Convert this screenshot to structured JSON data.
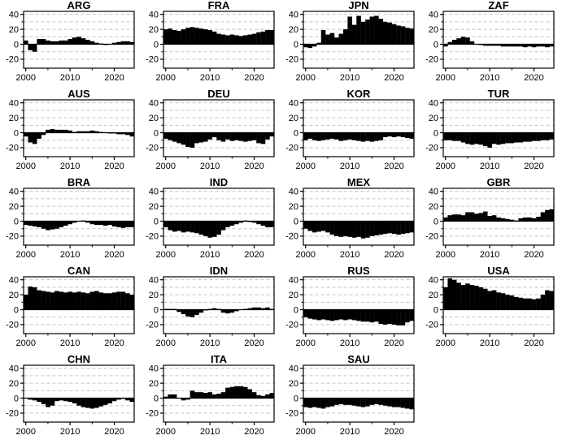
{
  "chart_data": {
    "type": "bar",
    "x_start": 2000,
    "x_end": 2024,
    "x_ticks": [
      2000,
      2010,
      2020
    ],
    "x_minor_ticks": [
      2005,
      2015
    ],
    "y_ticks": [
      -20,
      0,
      20,
      40
    ],
    "y_minor_ticks": [
      -10,
      10,
      30
    ],
    "y_gridlines": [
      -20,
      -10,
      10,
      20,
      30,
      40
    ],
    "ylim": [
      -32,
      44
    ],
    "bar_color": "#000000",
    "grid_color": "#c3c3c3",
    "axis_color": "#000000",
    "grid_style": "dashed",
    "legend": "none",
    "panels": [
      {
        "title": "ARG",
        "values": [
          5,
          -8,
          -10,
          7,
          7,
          5,
          4,
          4,
          5,
          5,
          7,
          9,
          10,
          8,
          6,
          4,
          2,
          1,
          -1,
          0,
          2,
          3,
          4,
          4,
          3
        ]
      },
      {
        "title": "FRA",
        "values": [
          20,
          21,
          19,
          18,
          20,
          22,
          23,
          22,
          21,
          20,
          19,
          17,
          14,
          13,
          12,
          13,
          12,
          11,
          12,
          13,
          14,
          16,
          17,
          19,
          19
        ]
      },
      {
        "title": "JPN",
        "values": [
          -4,
          -5,
          -3,
          2,
          19,
          13,
          15,
          9,
          14,
          20,
          37,
          26,
          38,
          30,
          33,
          37,
          38,
          34,
          30,
          29,
          27,
          25,
          24,
          22,
          21
        ]
      },
      {
        "title": "ZAF",
        "values": [
          -3,
          3,
          6,
          8,
          10,
          9,
          4,
          0,
          -1,
          -2,
          -2,
          -2,
          -2,
          -3,
          -3,
          -3,
          -3,
          -3,
          -4,
          -3,
          -4,
          -3,
          -3,
          -4,
          -3
        ]
      },
      {
        "title": "AUS",
        "values": [
          -5,
          -13,
          -15,
          -8,
          -3,
          4,
          5,
          4,
          4,
          4,
          3,
          1,
          2,
          2,
          2,
          3,
          2,
          1,
          0,
          -1,
          -1,
          -2,
          -2,
          -3,
          -5
        ]
      },
      {
        "title": "DEU",
        "values": [
          -8,
          -10,
          -12,
          -14,
          -16,
          -19,
          -20,
          -14,
          -13,
          -12,
          -9,
          -6,
          -10,
          -12,
          -9,
          -11,
          -10,
          -11,
          -12,
          -11,
          -10,
          -14,
          -15,
          -9,
          -5
        ]
      },
      {
        "title": "KOR",
        "values": [
          -10,
          -8,
          -10,
          -11,
          -10,
          -9,
          -8,
          -9,
          -11,
          -10,
          -9,
          -10,
          -11,
          -12,
          -11,
          -12,
          -11,
          -10,
          -6,
          -5,
          -6,
          -5,
          -6,
          -7,
          -8
        ]
      },
      {
        "title": "TUR",
        "values": [
          -10,
          -10,
          -11,
          -11,
          -13,
          -15,
          -16,
          -15,
          -16,
          -18,
          -20,
          -15,
          -16,
          -15,
          -14,
          -14,
          -13,
          -13,
          -12,
          -12,
          -11,
          -11,
          -10,
          -10,
          -9
        ]
      },
      {
        "title": "BRA",
        "values": [
          -5,
          -6,
          -7,
          -8,
          -10,
          -12,
          -11,
          -10,
          -8,
          -6,
          -4,
          -2,
          0,
          1,
          -2,
          -4,
          -5,
          -5,
          -6,
          -5,
          -7,
          -8,
          -9,
          -8,
          -8
        ]
      },
      {
        "title": "IND",
        "values": [
          -8,
          -12,
          -14,
          -13,
          -15,
          -14,
          -15,
          -16,
          -18,
          -20,
          -22,
          -21,
          -18,
          -12,
          -8,
          -6,
          -4,
          -2,
          1,
          -1,
          -2,
          -4,
          -6,
          -8,
          -8
        ]
      },
      {
        "title": "MEX",
        "values": [
          -10,
          -13,
          -15,
          -14,
          -13,
          -15,
          -18,
          -20,
          -21,
          -20,
          -21,
          -22,
          -21,
          -23,
          -22,
          -20,
          -19,
          -18,
          -17,
          -16,
          -17,
          -18,
          -17,
          -16,
          -15
        ]
      },
      {
        "title": "GBR",
        "values": [
          5,
          8,
          9,
          9,
          8,
          12,
          12,
          10,
          11,
          13,
          7,
          8,
          5,
          4,
          3,
          2,
          1,
          4,
          5,
          5,
          4,
          6,
          12,
          15,
          16
        ]
      },
      {
        "title": "CAN",
        "values": [
          20,
          31,
          30,
          26,
          25,
          24,
          23,
          25,
          24,
          23,
          24,
          23,
          24,
          23,
          22,
          24,
          25,
          23,
          22,
          22,
          23,
          24,
          24,
          22,
          20
        ]
      },
      {
        "title": "IDN",
        "values": [
          1,
          1,
          1,
          -3,
          -6,
          -9,
          -10,
          -7,
          -4,
          -1,
          1,
          2,
          1,
          -4,
          -5,
          -4,
          -2,
          0,
          1,
          2,
          3,
          3,
          2,
          3,
          1
        ]
      },
      {
        "title": "RUS",
        "values": [
          -10,
          -12,
          -13,
          -14,
          -13,
          -14,
          -15,
          -14,
          -13,
          -14,
          -13,
          -14,
          -15,
          -16,
          -16,
          -17,
          -16,
          -19,
          -20,
          -19,
          -20,
          -21,
          -21,
          -17,
          -15
        ]
      },
      {
        "title": "USA",
        "values": [
          30,
          42,
          40,
          36,
          33,
          35,
          33,
          32,
          30,
          28,
          25,
          26,
          23,
          22,
          20,
          19,
          17,
          16,
          15,
          15,
          14,
          15,
          20,
          26,
          25
        ]
      },
      {
        "title": "CHN",
        "values": [
          0,
          -2,
          -3,
          -5,
          -8,
          -12,
          -10,
          -4,
          -3,
          -4,
          -5,
          -7,
          -10,
          -12,
          -13,
          -14,
          -13,
          -11,
          -9,
          -7,
          -4,
          -2,
          -1,
          -3,
          -5
        ]
      },
      {
        "title": "ITA",
        "values": [
          2,
          5,
          5,
          0,
          -3,
          -2,
          10,
          8,
          8,
          7,
          8,
          5,
          6,
          8,
          14,
          15,
          16,
          16,
          15,
          12,
          8,
          4,
          3,
          5,
          7
        ]
      },
      {
        "title": "SAU",
        "values": [
          -12,
          -13,
          -12,
          -13,
          -14,
          -12,
          -11,
          -9,
          -8,
          -9,
          -9,
          -10,
          -11,
          -12,
          -11,
          -9,
          -8,
          -9,
          -10,
          -11,
          -12,
          -12,
          -13,
          -14,
          -15
        ]
      }
    ]
  }
}
